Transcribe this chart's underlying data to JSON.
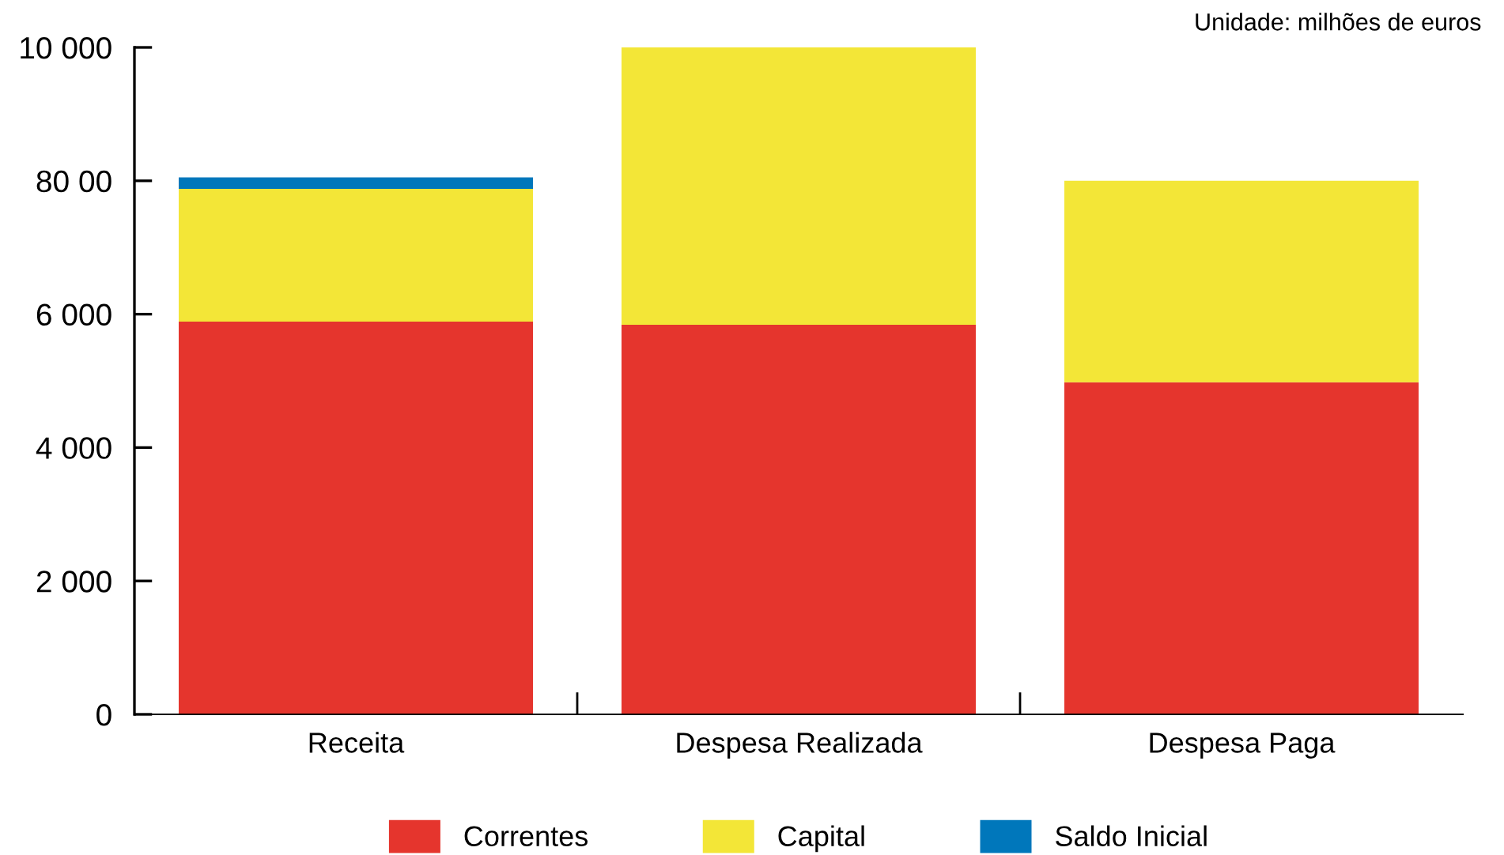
{
  "chart_data": {
    "type": "bar",
    "stacked": true,
    "categories": [
      "Receita",
      "Despesa Realizada",
      "Despesa Paga"
    ],
    "series": [
      {
        "name": "Correntes",
        "color": "#e5352d",
        "values": [
          5890,
          5840,
          4980
        ]
      },
      {
        "name": "Capital",
        "color": "#f3e637",
        "values": [
          1990,
          4160,
          3020
        ]
      },
      {
        "name": "Saldo Inicial",
        "color": "#0077bb",
        "values": [
          170,
          null,
          null
        ]
      }
    ],
    "ylim": [
      0,
      10000
    ],
    "yticks": [
      0,
      {
        "value": 2000,
        "label": "2 000"
      },
      {
        "value": 4000,
        "label": "4 000"
      },
      {
        "value": 6000,
        "label": "6 000"
      },
      {
        "value": 8000,
        "label": "80 00"
      },
      {
        "value": 10000,
        "label": "10 000"
      }
    ],
    "grid": false,
    "legend": "bottom",
    "annotations": [
      "Unidade: milhões de euros"
    ]
  }
}
